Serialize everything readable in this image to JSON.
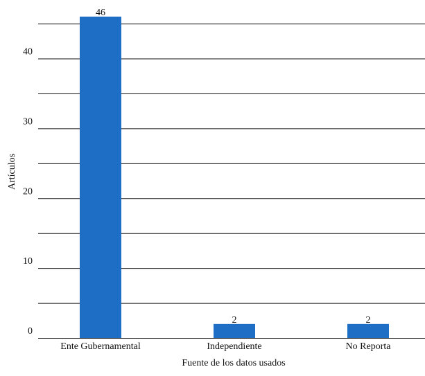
{
  "chart_data": {
    "type": "bar",
    "title": "",
    "xlabel": "Fuente de los datos usados",
    "ylabel": "Artículos",
    "categories": [
      "Ente Gubernamental",
      "Independiente",
      "No Reporta"
    ],
    "values": [
      46,
      2,
      2
    ],
    "data_labels": [
      "46",
      "2",
      "2"
    ],
    "ylim": [
      0,
      46
    ],
    "yticks": [
      0,
      10,
      20,
      30,
      40
    ],
    "ytick_labels": [
      "0",
      "10",
      "20",
      "30",
      "40"
    ],
    "grid": true,
    "legend": "none",
    "colors": {
      "bar": "#1f6ec5",
      "grid": "#111111",
      "text": "#111111"
    }
  }
}
